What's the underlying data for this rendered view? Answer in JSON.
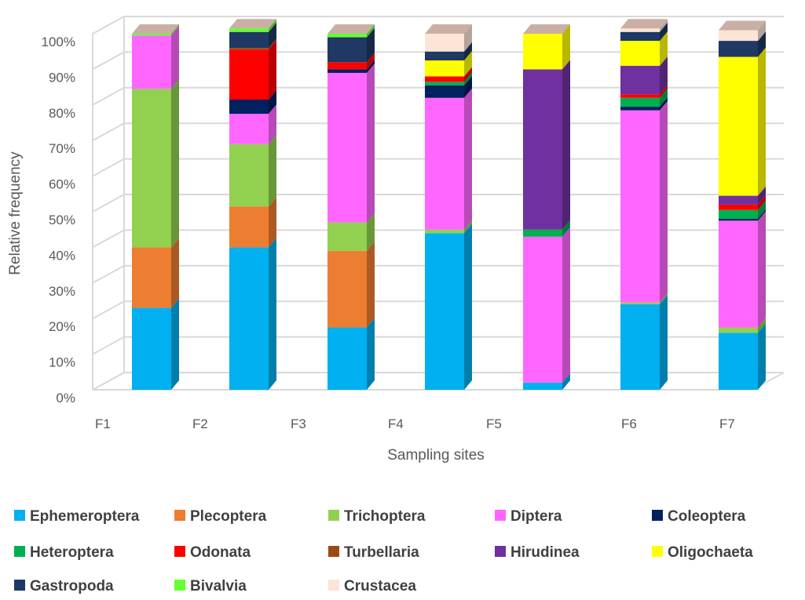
{
  "chart_data": {
    "type": "bar",
    "stacked": true,
    "percent_stacked": true,
    "three_d": true,
    "categories": [
      "F1",
      "F2",
      "F3",
      "F4",
      "F5",
      "F6",
      "F7"
    ],
    "xlabel": "Sampling sites",
    "ylabel": "Relative frequency",
    "ylim": [
      0,
      100
    ],
    "y_ticks": [
      "0%",
      "10%",
      "20%",
      "30%",
      "40%",
      "50%",
      "60%",
      "70%",
      "80%",
      "90%",
      "100%"
    ],
    "grid": true,
    "legend_position": "bottom",
    "series": [
      {
        "name": "Ephemeroptera",
        "color": "#00B0F0",
        "values": [
          23,
          40,
          17.5,
          44,
          2,
          24,
          16
        ]
      },
      {
        "name": "Plecoptera",
        "color": "#ED7D31",
        "values": [
          17,
          11.5,
          21.5,
          0,
          0,
          0,
          0
        ]
      },
      {
        "name": "Trichoptera",
        "color": "#92D050",
        "values": [
          44.5,
          17.5,
          8,
          1,
          0,
          0.5,
          1.5
        ]
      },
      {
        "name": "Diptera",
        "color": "#FF66FF",
        "values": [
          15,
          8.5,
          42,
          37,
          41,
          54,
          30
        ]
      },
      {
        "name": "Coleoptera",
        "color": "#002060",
        "values": [
          0,
          4,
          1,
          3.5,
          0,
          1,
          0.5
        ]
      },
      {
        "name": "Heteroptera",
        "color": "#00B050",
        "values": [
          0,
          0,
          0,
          1,
          2,
          2.5,
          2.5
        ]
      },
      {
        "name": "Odonata",
        "color": "#FF0000",
        "values": [
          0,
          14,
          2,
          1.5,
          0,
          1,
          1.5
        ]
      },
      {
        "name": "Turbellaria",
        "color": "#9C4A12",
        "values": [
          0,
          0.5,
          0,
          0,
          0,
          0,
          0
        ]
      },
      {
        "name": "Hirudinea",
        "color": "#7030A0",
        "values": [
          0,
          0,
          0,
          0,
          45,
          8,
          2.5
        ]
      },
      {
        "name": "Oligochaeta",
        "color": "#FFFF00",
        "values": [
          0,
          0,
          0,
          4.5,
          10,
          7,
          39
        ]
      },
      {
        "name": "Gastropoda",
        "color": "#1F3864",
        "values": [
          0,
          4.5,
          7,
          2.5,
          0,
          2.5,
          4.5
        ]
      },
      {
        "name": "Bivalvia",
        "color": "#66FF33",
        "values": [
          0.5,
          1,
          1,
          0,
          0,
          0,
          0
        ]
      },
      {
        "name": "Crustacea",
        "color": "#FCE4D6",
        "values": [
          0,
          0,
          0,
          5,
          0,
          1,
          3
        ]
      }
    ]
  }
}
